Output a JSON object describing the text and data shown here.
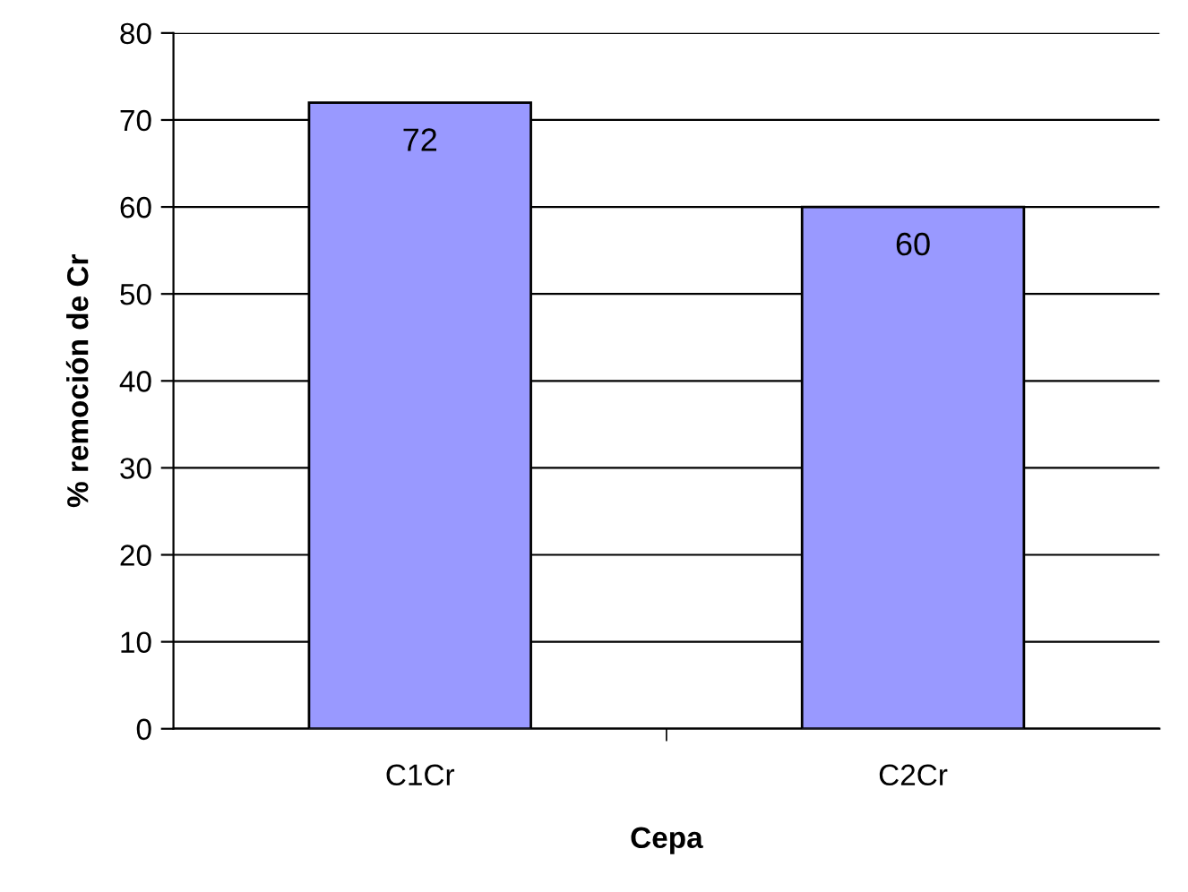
{
  "chart_data": {
    "type": "bar",
    "xlabel": "Cepa",
    "ylabel": "% remoción de Cr",
    "categories": [
      "C1Cr",
      "C2Cr"
    ],
    "series": [
      {
        "color": "#9999ff",
        "values": [
          72,
          60
        ]
      }
    ],
    "ylim": [
      0,
      80
    ],
    "yticks": [
      0,
      10,
      20,
      30,
      40,
      50,
      60,
      70,
      80
    ],
    "grid": "y",
    "data_labels": true
  }
}
